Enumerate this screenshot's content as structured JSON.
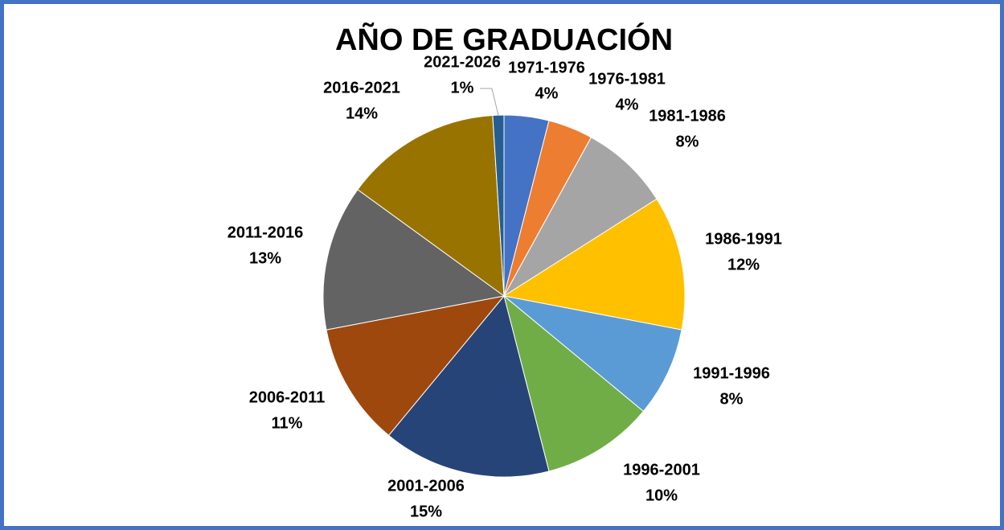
{
  "chart_data": {
    "type": "pie",
    "title": "AÑO DE GRADUACIÓN",
    "categories": [
      "1971-1976",
      "1976-1981",
      "1981-1986",
      "1986-1991",
      "1991-1996",
      "1996-2001",
      "2001-2006",
      "2006-2011",
      "2011-2016",
      "2016-2021",
      "2021-2026"
    ],
    "values": [
      4,
      4,
      8,
      12,
      8,
      10,
      15,
      11,
      13,
      14,
      1
    ],
    "value_labels": [
      "4%",
      "4%",
      "8%",
      "12%",
      "8%",
      "10%",
      "15%",
      "11%",
      "13%",
      "14%",
      "1%"
    ],
    "colors": [
      "#4472c4",
      "#ed7d31",
      "#a5a5a5",
      "#ffc000",
      "#5b9bd5",
      "#70ad47",
      "#264478",
      "#9e480e",
      "#636363",
      "#997300",
      "#255e91"
    ]
  }
}
